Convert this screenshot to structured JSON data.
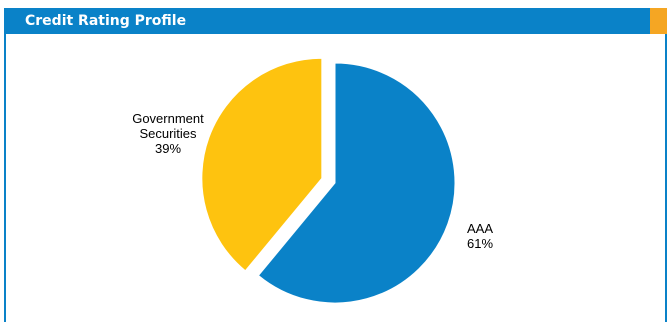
{
  "panel": {
    "title": "Credit Rating Profile",
    "accent_color": "#f5a623",
    "header_color": "#0a82c8"
  },
  "chart_data": {
    "type": "pie",
    "title": "",
    "slices": [
      {
        "label_lines": [
          "AAA"
        ],
        "pct_label": "61%",
        "value": 61,
        "color": "#0a82c8",
        "exploded": false
      },
      {
        "label_lines": [
          "Government",
          "Securities"
        ],
        "pct_label": "39%",
        "value": 39,
        "color": "#fec30f",
        "exploded": true
      }
    ],
    "legend": "none"
  }
}
